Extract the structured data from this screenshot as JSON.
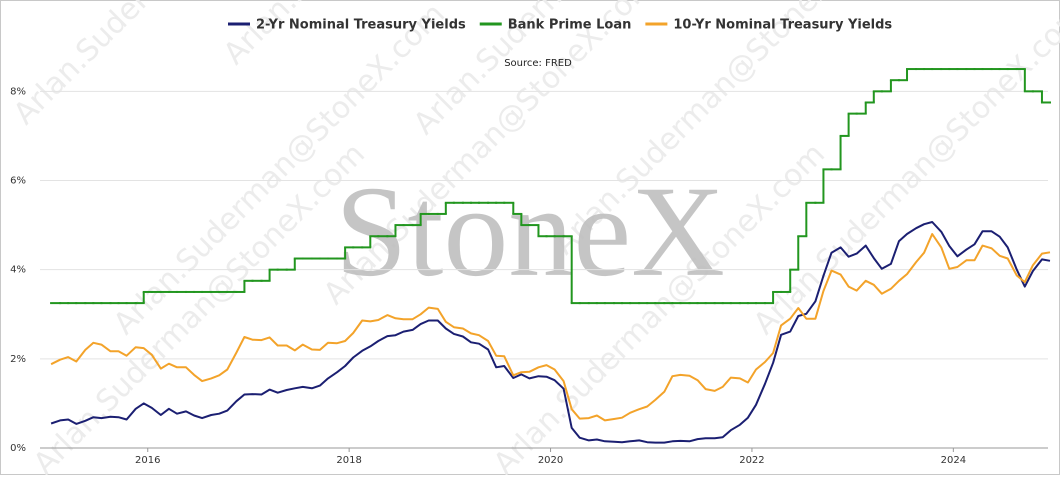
{
  "chart_data": {
    "type": "line",
    "subtitle": "Source: FRED",
    "watermark": {
      "logo": "StoneX",
      "email": "Arlan.Suderman@StoneX.com"
    },
    "x": [
      2015.04,
      2015.13,
      2015.21,
      2015.29,
      2015.38,
      2015.46,
      2015.54,
      2015.63,
      2015.71,
      2015.79,
      2015.88,
      2015.96,
      2016.04,
      2016.13,
      2016.21,
      2016.29,
      2016.38,
      2016.46,
      2016.54,
      2016.63,
      2016.71,
      2016.79,
      2016.88,
      2016.96,
      2017.04,
      2017.13,
      2017.21,
      2017.29,
      2017.38,
      2017.46,
      2017.54,
      2017.63,
      2017.71,
      2017.79,
      2017.88,
      2017.96,
      2018.04,
      2018.13,
      2018.21,
      2018.29,
      2018.38,
      2018.46,
      2018.54,
      2018.63,
      2018.71,
      2018.79,
      2018.88,
      2018.96,
      2019.04,
      2019.13,
      2019.21,
      2019.29,
      2019.38,
      2019.46,
      2019.54,
      2019.63,
      2019.71,
      2019.79,
      2019.88,
      2019.96,
      2020.04,
      2020.13,
      2020.21,
      2020.29,
      2020.38,
      2020.46,
      2020.54,
      2020.63,
      2020.71,
      2020.79,
      2020.88,
      2020.96,
      2021.04,
      2021.13,
      2021.21,
      2021.29,
      2021.38,
      2021.46,
      2021.54,
      2021.63,
      2021.71,
      2021.79,
      2021.88,
      2021.96,
      2022.04,
      2022.13,
      2022.21,
      2022.29,
      2022.38,
      2022.46,
      2022.54,
      2022.63,
      2022.71,
      2022.79,
      2022.88,
      2022.96,
      2023.04,
      2023.13,
      2023.21,
      2023.29,
      2023.38,
      2023.46,
      2023.54,
      2023.63,
      2023.71,
      2023.79,
      2023.88,
      2023.96,
      2024.04,
      2024.13,
      2024.21,
      2024.29,
      2024.38,
      2024.46,
      2024.54,
      2024.63,
      2024.71,
      2024.79,
      2024.88,
      2024.96
    ],
    "series": [
      {
        "name": "2-Yr Nominal Treasury Yields",
        "color": "#1b1f72",
        "values": [
          0.55,
          0.62,
          0.64,
          0.54,
          0.61,
          0.69,
          0.67,
          0.7,
          0.69,
          0.64,
          0.88,
          1.0,
          0.9,
          0.74,
          0.88,
          0.77,
          0.82,
          0.73,
          0.67,
          0.74,
          0.77,
          0.84,
          1.05,
          1.2,
          1.21,
          1.2,
          1.31,
          1.24,
          1.3,
          1.34,
          1.37,
          1.34,
          1.4,
          1.56,
          1.7,
          1.84,
          2.03,
          2.18,
          2.28,
          2.4,
          2.51,
          2.53,
          2.61,
          2.65,
          2.78,
          2.86,
          2.86,
          2.68,
          2.56,
          2.5,
          2.37,
          2.34,
          2.21,
          1.81,
          1.84,
          1.57,
          1.65,
          1.56,
          1.61,
          1.6,
          1.52,
          1.33,
          0.45,
          0.23,
          0.17,
          0.19,
          0.15,
          0.14,
          0.13,
          0.15,
          0.17,
          0.13,
          0.12,
          0.12,
          0.15,
          0.16,
          0.15,
          0.2,
          0.22,
          0.22,
          0.24,
          0.4,
          0.52,
          0.68,
          0.97,
          1.44,
          1.91,
          2.54,
          2.61,
          2.96,
          3.01,
          3.29,
          3.86,
          4.38,
          4.5,
          4.29,
          4.36,
          4.54,
          4.26,
          4.02,
          4.13,
          4.64,
          4.8,
          4.93,
          5.02,
          5.07,
          4.85,
          4.53,
          4.3,
          4.45,
          4.57,
          4.86,
          4.86,
          4.74,
          4.5,
          4.0,
          3.62,
          3.97,
          4.23,
          4.2
        ]
      },
      {
        "name": "Bank Prime Loan",
        "color": "#22961f",
        "step": true,
        "values": [
          3.25,
          3.25,
          3.25,
          3.25,
          3.25,
          3.25,
          3.25,
          3.25,
          3.25,
          3.25,
          3.25,
          3.5,
          3.5,
          3.5,
          3.5,
          3.5,
          3.5,
          3.5,
          3.5,
          3.5,
          3.5,
          3.5,
          3.5,
          3.75,
          3.75,
          3.75,
          4,
          4,
          4,
          4.25,
          4.25,
          4.25,
          4.25,
          4.25,
          4.25,
          4.5,
          4.5,
          4.5,
          4.75,
          4.75,
          4.75,
          5,
          5,
          5,
          5.25,
          5.25,
          5.25,
          5.5,
          5.5,
          5.5,
          5.5,
          5.5,
          5.5,
          5.5,
          5.5,
          5.25,
          5,
          5,
          4.75,
          4.75,
          4.75,
          4.75,
          3.25,
          3.25,
          3.25,
          3.25,
          3.25,
          3.25,
          3.25,
          3.25,
          3.25,
          3.25,
          3.25,
          3.25,
          3.25,
          3.25,
          3.25,
          3.25,
          3.25,
          3.25,
          3.25,
          3.25,
          3.25,
          3.25,
          3.25,
          3.25,
          3.5,
          3.5,
          4,
          4.75,
          5.5,
          5.5,
          6.25,
          6.25,
          7,
          7.5,
          7.5,
          7.75,
          8,
          8,
          8.25,
          8.25,
          8.5,
          8.5,
          8.5,
          8.5,
          8.5,
          8.5,
          8.5,
          8.5,
          8.5,
          8.5,
          8.5,
          8.5,
          8.5,
          8.5,
          8,
          8,
          7.75,
          7.75
        ]
      },
      {
        "name": "10-Yr Nominal Treasury Yields",
        "color": "#f3a32a",
        "values": [
          1.88,
          1.98,
          2.04,
          1.94,
          2.2,
          2.36,
          2.32,
          2.17,
          2.17,
          2.07,
          2.26,
          2.24,
          2.09,
          1.78,
          1.89,
          1.81,
          1.81,
          1.64,
          1.5,
          1.56,
          1.63,
          1.76,
          2.14,
          2.49,
          2.43,
          2.42,
          2.48,
          2.3,
          2.3,
          2.19,
          2.32,
          2.21,
          2.2,
          2.36,
          2.35,
          2.4,
          2.58,
          2.86,
          2.84,
          2.87,
          2.98,
          2.91,
          2.89,
          2.89,
          3.0,
          3.15,
          3.12,
          2.83,
          2.71,
          2.68,
          2.57,
          2.53,
          2.4,
          2.07,
          2.06,
          1.63,
          1.7,
          1.71,
          1.81,
          1.86,
          1.76,
          1.5,
          0.87,
          0.66,
          0.67,
          0.73,
          0.62,
          0.65,
          0.68,
          0.79,
          0.87,
          0.93,
          1.08,
          1.26,
          1.61,
          1.64,
          1.62,
          1.52,
          1.32,
          1.28,
          1.37,
          1.58,
          1.56,
          1.47,
          1.76,
          1.93,
          2.13,
          2.75,
          2.9,
          3.14,
          2.9,
          2.9,
          3.52,
          3.98,
          3.89,
          3.62,
          3.53,
          3.75,
          3.66,
          3.46,
          3.57,
          3.75,
          3.9,
          4.17,
          4.38,
          4.8,
          4.5,
          4.02,
          4.06,
          4.21,
          4.21,
          4.54,
          4.48,
          4.31,
          4.25,
          3.87,
          3.72,
          4.1,
          4.36,
          4.39
        ]
      }
    ],
    "xlim": [
      2014.93,
      2024.94
    ],
    "xticks": [
      2016,
      2018,
      2020,
      2022,
      2024
    ],
    "ylim": [
      0,
      9.6
    ],
    "yticks": [
      {
        "value": 0,
        "label": "0%"
      },
      {
        "value": 2,
        "label": "2%"
      },
      {
        "value": 4,
        "label": "4%"
      },
      {
        "value": 6,
        "label": "6%"
      },
      {
        "value": 8,
        "label": "8%"
      }
    ],
    "grid": true,
    "legend": "top"
  }
}
